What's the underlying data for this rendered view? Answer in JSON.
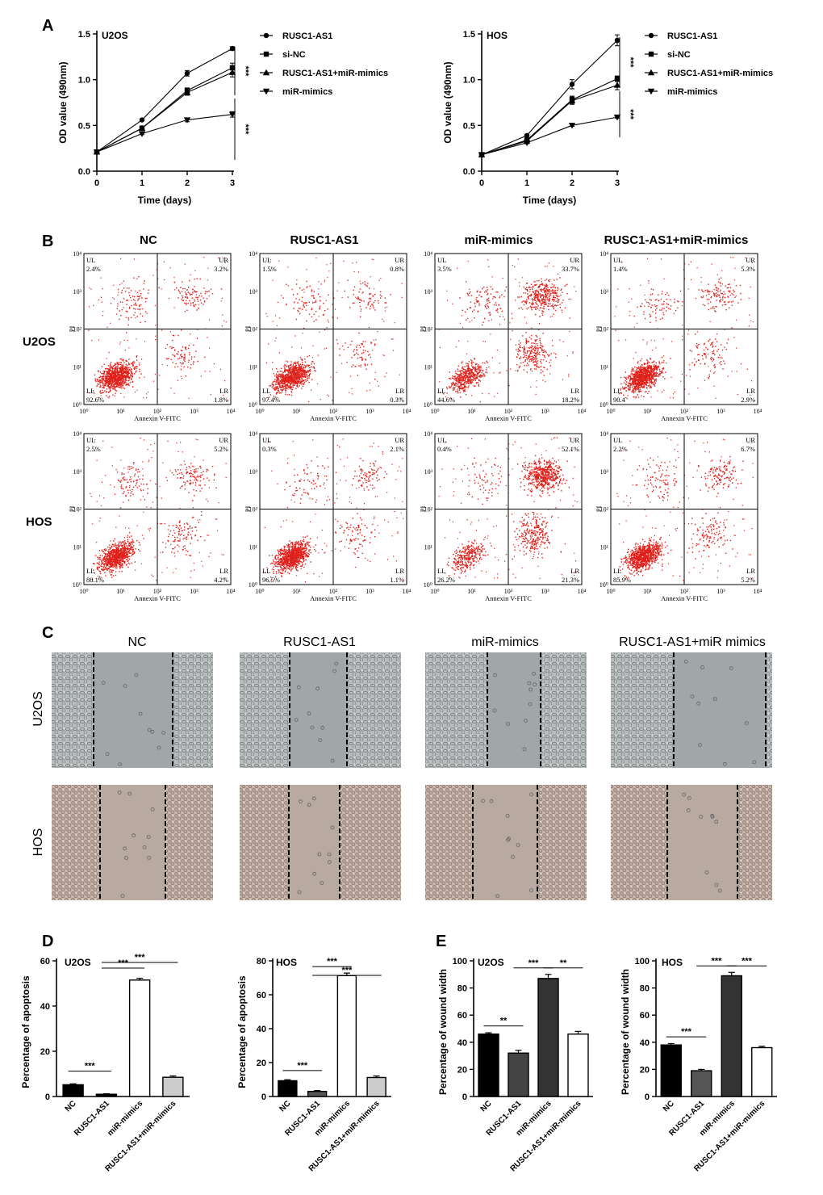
{
  "panel_labels": {
    "A": "A",
    "B": "B",
    "C": "C",
    "D": "D",
    "E": "E"
  },
  "colors": {
    "flow_dots": "#e0201b",
    "wound_u2os": "#b8bcbc",
    "wound_hos": "#c9b4aa",
    "wound_gap_u2os": "#9fa7a8",
    "wound_gap_hos": "#b8aaa0"
  },
  "chart_data": [
    {
      "id": "A-U2OS",
      "type": "line",
      "title": "U2OS",
      "xlabel": "Time (days)",
      "ylabel": "OD value (490nm)",
      "x": [
        0,
        1,
        2,
        3
      ],
      "xlim": [
        0,
        3
      ],
      "ylim": [
        0,
        1.5
      ],
      "xticks": [
        "0",
        "1",
        "2",
        "3"
      ],
      "yticks": [
        "0.0",
        "0.5",
        "1.0",
        "1.5"
      ],
      "series": [
        {
          "name": "RUSC1-AS1",
          "marker": "circle",
          "values": [
            0.21,
            0.56,
            1.07,
            1.34
          ],
          "err": [
            0,
            0.01,
            0.03,
            0.02
          ]
        },
        {
          "name": "si-NC",
          "marker": "square",
          "values": [
            0.21,
            0.47,
            0.88,
            1.13
          ],
          "err": [
            0,
            0.01,
            0.03,
            0.05
          ]
        },
        {
          "name": "RUSC1-AS1+miR-mimics",
          "marker": "triangle-up",
          "values": [
            0.21,
            0.47,
            0.86,
            1.08
          ],
          "err": [
            0,
            0.01,
            0.03,
            0.05
          ]
        },
        {
          "name": "miR-mimics",
          "marker": "triangle-down",
          "values": [
            0.21,
            0.41,
            0.56,
            0.62
          ],
          "err": [
            0,
            0.01,
            0.02,
            0.03
          ]
        }
      ],
      "significance": [
        "***",
        "***"
      ],
      "legend_position": "right"
    },
    {
      "id": "A-HOS",
      "type": "line",
      "title": "HOS",
      "xlabel": "Time (days)",
      "ylabel": "OD value (490nm)",
      "x": [
        0,
        1,
        2,
        3
      ],
      "xlim": [
        0,
        3
      ],
      "ylim": [
        0,
        1.5
      ],
      "xticks": [
        "0",
        "1",
        "2",
        "3"
      ],
      "yticks": [
        "0.0",
        "0.5",
        "1.0",
        "1.5"
      ],
      "series": [
        {
          "name": "RUSC1-AS1",
          "marker": "circle",
          "values": [
            0.18,
            0.39,
            0.95,
            1.43
          ],
          "err": [
            0,
            0.01,
            0.05,
            0.06
          ]
        },
        {
          "name": "si-NC",
          "marker": "square",
          "values": [
            0.18,
            0.34,
            0.78,
            1.01
          ],
          "err": [
            0,
            0.01,
            0.04,
            0.03
          ]
        },
        {
          "name": "RUSC1-AS1+miR-mimics",
          "marker": "triangle-up",
          "values": [
            0.18,
            0.33,
            0.77,
            0.94
          ],
          "err": [
            0,
            0.01,
            0.04,
            0.05
          ]
        },
        {
          "name": "miR-mimics",
          "marker": "triangle-down",
          "values": [
            0.18,
            0.31,
            0.5,
            0.59
          ],
          "err": [
            0,
            0.01,
            0.01,
            0.01
          ]
        }
      ],
      "significance": [
        "***",
        "***"
      ],
      "legend_position": "right"
    },
    {
      "id": "D-U2OS",
      "type": "bar",
      "title": "U2OS",
      "ylabel": "Percentage of apoptosis",
      "categories": [
        "NC",
        "RUSC1-AS1",
        "miR-mimics",
        "RUSC1-AS1+miR-mimics"
      ],
      "values": [
        5.2,
        1.0,
        51.5,
        8.5
      ],
      "err": [
        0.4,
        0.2,
        0.8,
        0.6
      ],
      "fills": [
        "#000000",
        "#000000",
        "#ffffff",
        "#cccccc"
      ],
      "ylim": [
        0,
        60
      ],
      "yticks": [
        "0",
        "20",
        "40",
        "60"
      ],
      "comparisons": [
        {
          "from": 0,
          "to": 1,
          "label": "***"
        },
        {
          "from": 1,
          "to": 2,
          "label": "***"
        },
        {
          "from": 1,
          "to": 3,
          "label": "***"
        }
      ]
    },
    {
      "id": "D-HOS",
      "type": "bar",
      "title": "HOS",
      "ylabel": "Percentage of apoptosis",
      "categories": [
        "NC",
        "RUSC1-AS1",
        "miR-mimics",
        "RUSC1-AS1+miR-mimics"
      ],
      "values": [
        9.3,
        3.0,
        71.3,
        11.2
      ],
      "err": [
        0.6,
        0.5,
        1.5,
        0.9
      ],
      "fills": [
        "#000000",
        "#555555",
        "#ffffff",
        "#cccccc"
      ],
      "ylim": [
        0,
        80
      ],
      "yticks": [
        "0",
        "20",
        "40",
        "60",
        "80"
      ],
      "comparisons": [
        {
          "from": 0,
          "to": 1,
          "label": "***"
        },
        {
          "from": 1,
          "to": 2,
          "label": "***"
        },
        {
          "from": 1,
          "to": 3,
          "label": "***"
        }
      ]
    },
    {
      "id": "E-U2OS",
      "type": "bar",
      "title": "U2OS",
      "ylabel": "Percentage of wound width",
      "categories": [
        "NC",
        "RUSC1-AS1",
        "miR-mimics",
        "RUSC1-AS1+miR-mimics"
      ],
      "values": [
        46,
        32,
        87,
        46
      ],
      "err": [
        1,
        2,
        3,
        2
      ],
      "fills": [
        "#000000",
        "#444444",
        "#333333",
        "#ffffff"
      ],
      "ylim": [
        0,
        100
      ],
      "yticks": [
        "0",
        "20",
        "40",
        "60",
        "80",
        "100"
      ],
      "comparisons": [
        {
          "from": 0,
          "to": 1,
          "label": "**"
        },
        {
          "from": 1,
          "to": 2,
          "label": "***"
        },
        {
          "from": 2,
          "to": 3,
          "label": "**"
        }
      ]
    },
    {
      "id": "E-HOS",
      "type": "bar",
      "title": "HOS",
      "ylabel": "Percentage of wound width",
      "categories": [
        "NC",
        "RUSC1-AS1",
        "miR-mimics",
        "RUSC1-AS1+miR-mimics"
      ],
      "values": [
        38,
        19,
        89,
        36
      ],
      "err": [
        1,
        1,
        2.5,
        1
      ],
      "fills": [
        "#000000",
        "#555555",
        "#333333",
        "#ffffff"
      ],
      "ylim": [
        0,
        100
      ],
      "yticks": [
        "0",
        "20",
        "40",
        "60",
        "80",
        "100"
      ],
      "comparisons": [
        {
          "from": 0,
          "to": 1,
          "label": "***"
        },
        {
          "from": 1,
          "to": 2,
          "label": "***"
        },
        {
          "from": 2,
          "to": 3,
          "label": "***"
        }
      ]
    }
  ],
  "flow": {
    "columns": [
      "NC",
      "RUSC1-AS1",
      "miR-mimics",
      "RUSC1-AS1+miR-mimics"
    ],
    "rows": [
      "U2OS",
      "HOS"
    ],
    "xlabel": "Annexin V-FITC",
    "ylabel": "PI",
    "ticks": [
      "10⁰",
      "10¹",
      "10²",
      "10³",
      "10⁴"
    ],
    "quadrant_names": {
      "UL": "UL",
      "UR": "UR",
      "LL": "LL",
      "LR": "LR"
    },
    "plots": [
      {
        "UL": "2.4%",
        "UR": "3.2%",
        "LL": "92.6%",
        "LR": "1.8%"
      },
      {
        "UL": "1.5%",
        "UR": "0.8%",
        "LL": "97.4%",
        "LR": "0.3%"
      },
      {
        "UL": "3.5%",
        "UR": "33.7%",
        "LL": "44.6%",
        "LR": "18.2%"
      },
      {
        "UL": "1.4%",
        "UR": "5.3%",
        "LL": "90.4",
        "LR": "2.9%"
      },
      {
        "UL": "2.5%",
        "UR": "5.2%",
        "LL": "88.1%",
        "LR": "4.2%"
      },
      {
        "UL": "0.3%",
        "UR": "2.1%",
        "LL": "96.5%",
        "LR": "1.1%"
      },
      {
        "UL": "0.4%",
        "UR": "52.1%",
        "LL": "26.2%",
        "LR": "21.3%"
      },
      {
        "UL": "2.2%",
        "UR": "6.7%",
        "LL": "85.9%",
        "LR": "5.2%"
      }
    ]
  },
  "wound": {
    "columns": [
      "NC",
      "RUSC1-AS1",
      "miR-mimics",
      "RUSC1-AS1+miR mimics"
    ],
    "rows": [
      "U2OS",
      "HOS"
    ]
  }
}
